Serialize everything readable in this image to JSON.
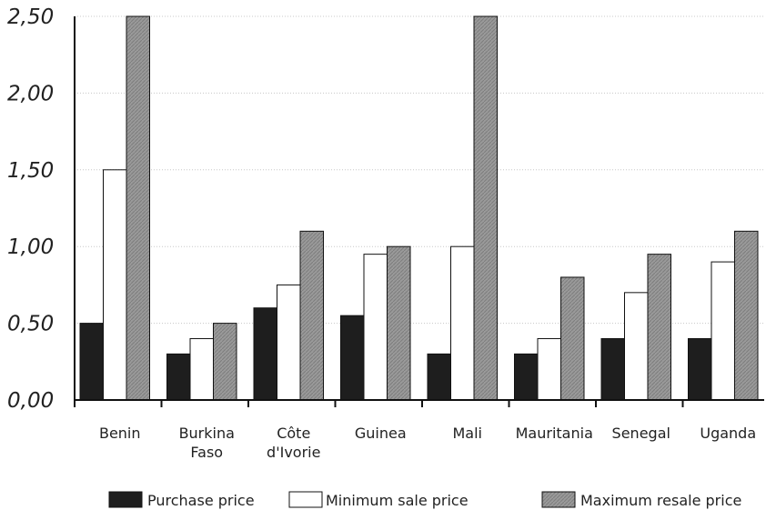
{
  "chart_data": {
    "type": "bar",
    "categories": [
      [
        "Benin"
      ],
      [
        "Burkina",
        "Faso"
      ],
      [
        "Côte",
        "d'Ivorie"
      ],
      [
        "Guinea"
      ],
      [
        "Mali"
      ],
      [
        "Mauritania"
      ],
      [
        "Senegal"
      ],
      [
        "Uganda"
      ]
    ],
    "series": [
      {
        "name": "Purchase price",
        "values": [
          0.5,
          0.3,
          0.6,
          0.55,
          0.3,
          0.3,
          0.4,
          0.4
        ],
        "color": "#1e1e1e"
      },
      {
        "name": "Minimum sale price",
        "values": [
          1.5,
          0.4,
          0.75,
          0.95,
          1.0,
          0.4,
          0.7,
          0.9
        ],
        "color": "#ffffff"
      },
      {
        "name": "Maximum resale price",
        "values": [
          2.5,
          0.5,
          1.1,
          1.0,
          2.5,
          0.8,
          0.95,
          1.1
        ],
        "color": "#9a9a9a"
      }
    ],
    "yticks": [
      "0,00",
      "0,50",
      "1,00",
      "1,50",
      "2,00",
      "2,50"
    ],
    "ylim": [
      0,
      2.5
    ],
    "grid": true,
    "legend_position": "bottom"
  }
}
